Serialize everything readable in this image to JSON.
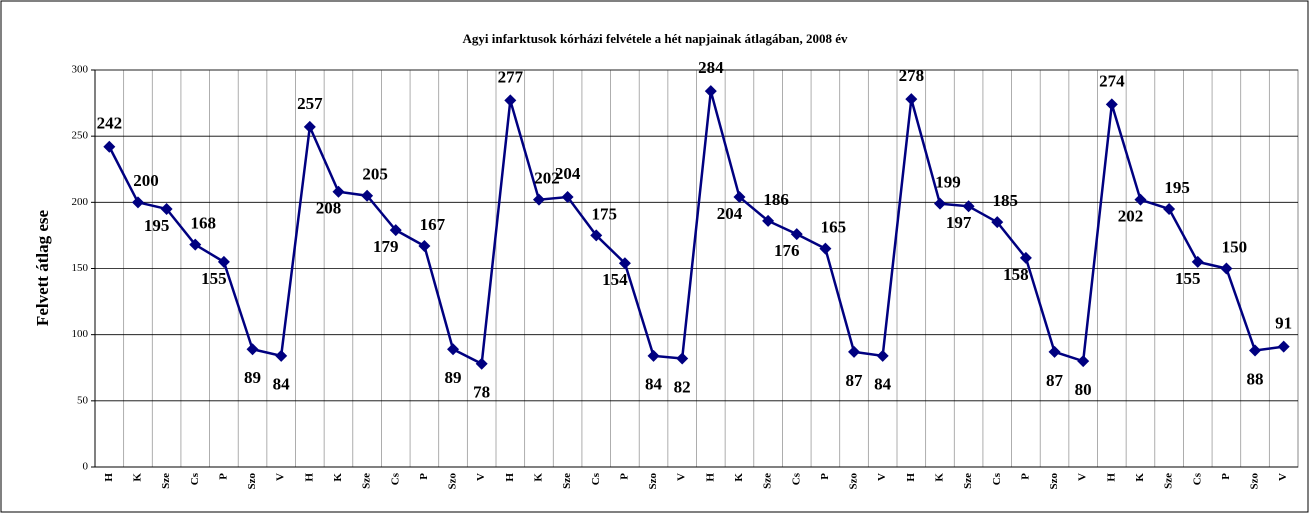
{
  "chart_data": {
    "type": "line",
    "title": "Agyi infarktusok kórházi felvétele a hét napjainak átlagában, 2008 év",
    "y_label": "Felvett átlag ese",
    "categories": [
      "H",
      "K",
      "Sze",
      "Cs",
      "P",
      "Szo",
      "V",
      "H",
      "K",
      "Sze",
      "Cs",
      "P",
      "Szo",
      "V",
      "H",
      "K",
      "Sze",
      "Cs",
      "P",
      "Szo",
      "V",
      "H",
      "K",
      "Sze",
      "Cs",
      "P",
      "Szo",
      "V",
      "H",
      "K",
      "Sze",
      "Cs",
      "P",
      "Szo",
      "V",
      "H",
      "K",
      "Sze",
      "Cs",
      "P",
      "Szo",
      "V"
    ],
    "series": [
      {
        "name": "Felvett átlag",
        "color": "#000080",
        "values": [
          242,
          200,
          195,
          168,
          155,
          89,
          84,
          257,
          208,
          205,
          179,
          167,
          89,
          78,
          277,
          202,
          204,
          175,
          154,
          84,
          82,
          284,
          204,
          186,
          176,
          165,
          87,
          84,
          278,
          199,
          197,
          185,
          158,
          87,
          80,
          274,
          202,
          195,
          155,
          150,
          88,
          91
        ]
      }
    ],
    "ylim": [
      0,
      300
    ],
    "yticks": [
      0,
      50,
      100,
      150,
      200,
      250,
      300
    ],
    "grid": true
  }
}
